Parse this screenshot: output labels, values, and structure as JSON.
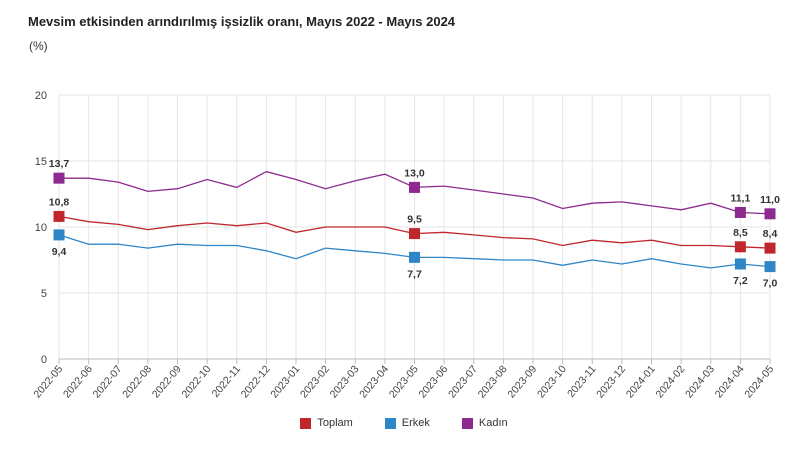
{
  "chart_data": {
    "type": "line",
    "title": "Mevsim etkisinden arındırılmış işsizlik oranı, Mayıs 2022 - Mayıs 2024",
    "ylabel": "(%)",
    "xlabel": "",
    "ylim": [
      0,
      20
    ],
    "yticks": [
      "0",
      "5",
      "10",
      "15",
      "20"
    ],
    "grid": true,
    "legend_position": "bottom-center",
    "categories": [
      "2022-05",
      "2022-06",
      "2022-07",
      "2022-08",
      "2022-09",
      "2022-10",
      "2022-11",
      "2022-12",
      "2023-01",
      "2023-02",
      "2023-03",
      "2023-04",
      "2023-05",
      "2023-06",
      "2023-07",
      "2023-08",
      "2023-09",
      "2023-10",
      "2023-11",
      "2023-12",
      "2024-01",
      "2024-02",
      "2024-03",
      "2024-04",
      "2024-05"
    ],
    "series": [
      {
        "name": "Toplam",
        "color": "#c0272d",
        "values": [
          10.8,
          10.4,
          10.2,
          9.8,
          10.1,
          10.3,
          10.1,
          10.3,
          9.6,
          10.0,
          10.0,
          10.0,
          9.5,
          9.6,
          9.4,
          9.2,
          9.1,
          8.6,
          9.0,
          8.8,
          9.0,
          8.6,
          8.6,
          8.5,
          8.4
        ],
        "labels": [
          {
            "index": 0,
            "text": "10,8"
          },
          {
            "index": 12,
            "text": "9,5"
          },
          {
            "index": 23,
            "text": "8,5"
          },
          {
            "index": 24,
            "text": "8,4"
          }
        ]
      },
      {
        "name": "Erkek",
        "color": "#2f86c6",
        "values": [
          9.4,
          8.7,
          8.7,
          8.4,
          8.7,
          8.6,
          8.6,
          8.2,
          7.6,
          8.4,
          8.2,
          8.0,
          7.7,
          7.7,
          7.6,
          7.5,
          7.5,
          7.1,
          7.5,
          7.2,
          7.6,
          7.2,
          6.9,
          7.2,
          7.0
        ],
        "labels": [
          {
            "index": 0,
            "text": "9,4"
          },
          {
            "index": 12,
            "text": "7,7"
          },
          {
            "index": 23,
            "text": "7,2"
          },
          {
            "index": 24,
            "text": "7,0"
          }
        ]
      },
      {
        "name": "Kadın",
        "color": "#8e2a8f",
        "values": [
          13.7,
          13.7,
          13.4,
          12.7,
          12.9,
          13.6,
          13.0,
          14.2,
          13.6,
          12.9,
          13.5,
          14.0,
          13.0,
          13.1,
          12.8,
          12.5,
          12.2,
          11.4,
          11.8,
          11.9,
          11.6,
          11.3,
          11.8,
          11.1,
          11.0
        ],
        "labels": [
          {
            "index": 0,
            "text": "13,7"
          },
          {
            "index": 12,
            "text": "13,0"
          },
          {
            "index": 23,
            "text": "11,1"
          },
          {
            "index": 24,
            "text": "11,0"
          }
        ]
      }
    ]
  }
}
